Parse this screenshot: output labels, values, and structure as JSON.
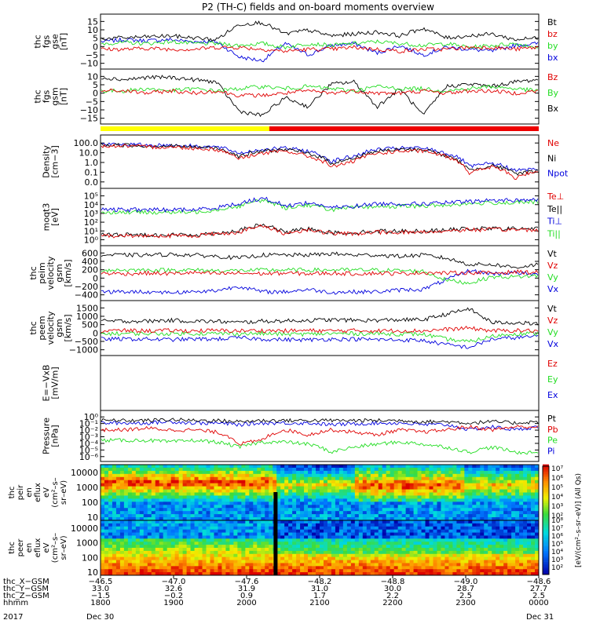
{
  "title": "P2 (TH-C) fields and on-board moments overview",
  "colors": {
    "black": "#000000",
    "red": "#e00000",
    "green": "#22dd22",
    "blue": "#0000dd",
    "yellow": "#ffff00",
    "barRed": "#ee0000"
  },
  "chart_data": [
    {
      "type": "line",
      "panel": "fgs_gse",
      "ylabel": [
        "thc",
        "fgs",
        "gse",
        "[nT]"
      ],
      "yticks": [
        "15",
        "10",
        "5",
        "0",
        "−5",
        "−10"
      ],
      "legend": [
        {
          "label": "Bt",
          "color": "#000000"
        },
        {
          "label": "bz",
          "color": "#e00000"
        },
        {
          "label": "by",
          "color": "#22dd22"
        },
        {
          "label": "bx",
          "color": "#0000dd"
        }
      ],
      "series": [
        {
          "name": "Bt",
          "values": [
            3.5,
            4,
            4.5,
            5,
            4,
            3,
            11,
            12,
            6,
            8,
            5,
            6,
            7,
            5,
            9,
            4,
            5,
            6,
            3,
            4
          ]
        },
        {
          "name": "bz",
          "values": [
            -2,
            -2,
            -1.5,
            -2,
            -2,
            -1,
            -1,
            -2,
            -3,
            -2,
            -2,
            -1,
            -2,
            -3,
            -2,
            -2,
            -1,
            -1,
            -2,
            -1
          ]
        },
        {
          "name": "by",
          "values": [
            1,
            1.5,
            1,
            2,
            1,
            1,
            0,
            1,
            -1,
            1,
            0,
            1,
            2,
            1,
            0,
            1,
            -1,
            0,
            1,
            -1
          ]
        },
        {
          "name": "bx",
          "values": [
            2,
            3,
            2.5,
            3,
            2,
            2,
            -6,
            -8,
            1,
            -5,
            0,
            1,
            -4,
            0,
            -5,
            -1,
            -2,
            -3,
            0,
            1
          ]
        }
      ]
    },
    {
      "type": "line",
      "panel": "fgs_gsm",
      "ylabel": [
        "thc",
        "fgs",
        "gsm",
        "[nT]"
      ],
      "yticks": [
        "10",
        "5",
        "0",
        "−5",
        "−10",
        "−15"
      ],
      "legend": [
        {
          "label": "Bz",
          "color": "#e00000"
        },
        {
          "label": "By",
          "color": "#22dd22"
        },
        {
          "label": "Bx",
          "color": "#000000"
        }
      ],
      "series": [
        {
          "name": "Bz",
          "values": [
            -1,
            -1,
            -2,
            -1,
            -2,
            -1,
            -3,
            -3,
            -2,
            -1,
            -2,
            -1,
            -2,
            -2,
            -1,
            -2,
            -1,
            -1,
            -2,
            -1
          ]
        },
        {
          "name": "By",
          "values": [
            -1,
            -1,
            0,
            -1,
            0,
            -1,
            0,
            1,
            0,
            1,
            0,
            -1,
            1,
            0,
            0,
            -1,
            0,
            1,
            0,
            -1
          ]
        },
        {
          "name": "Bx",
          "values": [
            5,
            4,
            5,
            5,
            4,
            3,
            -10,
            -12,
            -4,
            -8,
            2,
            3,
            -8,
            0,
            -12,
            1,
            2,
            1,
            3,
            4
          ]
        }
      ]
    },
    {
      "type": "line",
      "panel": "density",
      "ylabel": [
        "Density",
        "[cm−3]"
      ],
      "yscale": "log",
      "yticks": [
        "100.0",
        "10.0",
        "1.0",
        "0.1",
        "0.0"
      ],
      "legend": [
        {
          "label": "Ne",
          "color": "#e00000"
        },
        {
          "label": "Ni",
          "color": "#000000"
        },
        {
          "label": "Npot",
          "color": "#0000dd"
        }
      ],
      "series": [
        {
          "name": "Ne",
          "values": [
            8,
            8,
            7,
            7,
            6,
            5,
            1.5,
            3,
            4,
            2,
            0.5,
            1,
            3,
            4,
            4,
            2,
            0.2,
            0.5,
            0.1,
            0.3
          ]
        },
        {
          "name": "Ni",
          "values": [
            9,
            9,
            8,
            8,
            7,
            6,
            2,
            4,
            5,
            3,
            0.8,
            1.5,
            4,
            5,
            5,
            2,
            0.3,
            0.6,
            0.2,
            0.3
          ]
        },
        {
          "name": "Npot",
          "values": [
            10,
            10,
            9,
            9,
            8,
            7,
            3,
            5,
            6,
            4,
            1,
            2,
            5,
            6,
            6,
            3,
            0.5,
            0.8,
            0.3,
            0.4
          ]
        }
      ]
    },
    {
      "type": "line",
      "panel": "temperature",
      "ylabel": [
        "moqt3",
        "[eV]"
      ],
      "yscale": "log",
      "yticks": [
        "10⁵",
        "10⁴",
        "10³",
        "10²",
        "10¹",
        "10⁰"
      ],
      "legend": [
        {
          "label": "Te⊥",
          "color": "#e00000"
        },
        {
          "label": "Te||",
          "color": "#000000"
        },
        {
          "label": "Ti⊥",
          "color": "#0000dd"
        },
        {
          "label": "Ti||",
          "color": "#22dd22"
        }
      ],
      "series": [
        {
          "name": "Te⊥",
          "values": [
            20,
            20,
            20,
            20,
            20,
            25,
            30,
            60,
            25,
            40,
            25,
            25,
            30,
            30,
            30,
            35,
            40,
            40,
            40,
            40
          ]
        },
        {
          "name": "Te||",
          "values": [
            22,
            22,
            22,
            22,
            22,
            27,
            35,
            70,
            28,
            45,
            28,
            28,
            34,
            34,
            34,
            38,
            45,
            45,
            45,
            45
          ]
        },
        {
          "name": "Ti⊥",
          "values": [
            400,
            400,
            400,
            400,
            400,
            500,
            800,
            1500,
            600,
            900,
            500,
            600,
            800,
            800,
            800,
            900,
            1000,
            1200,
            1200,
            1300
          ]
        },
        {
          "name": "Ti||",
          "values": [
            300,
            300,
            300,
            300,
            300,
            400,
            600,
            1200,
            500,
            700,
            400,
            500,
            600,
            600,
            600,
            700,
            800,
            900,
            900,
            1000
          ]
        }
      ]
    },
    {
      "type": "line",
      "panel": "peim_velocity",
      "ylabel": [
        "thc",
        "peim",
        "velocity",
        "gsm",
        "[km/s]"
      ],
      "yticks": [
        "600",
        "400",
        "200",
        "0",
        "−200",
        "−400"
      ],
      "legend": [
        {
          "label": "Vt",
          "color": "#000000"
        },
        {
          "label": "Vz",
          "color": "#e00000"
        },
        {
          "label": "Vy",
          "color": "#22dd22"
        },
        {
          "label": "Vx",
          "color": "#0000dd"
        }
      ],
      "series": [
        {
          "name": "Vt",
          "values": [
            300,
            300,
            300,
            310,
            300,
            280,
            250,
            300,
            300,
            300,
            320,
            300,
            300,
            280,
            300,
            250,
            150,
            150,
            100,
            150
          ]
        },
        {
          "name": "Vz",
          "values": [
            10,
            0,
            10,
            0,
            20,
            0,
            10,
            0,
            10,
            0,
            10,
            0,
            10,
            0,
            20,
            10,
            20,
            10,
            30,
            20
          ]
        },
        {
          "name": "Vy",
          "values": [
            60,
            60,
            60,
            60,
            60,
            50,
            50,
            60,
            60,
            60,
            60,
            60,
            60,
            50,
            40,
            -100,
            -150,
            -50,
            -50,
            -30
          ]
        },
        {
          "name": "Vx",
          "values": [
            -290,
            -290,
            -290,
            -300,
            -290,
            -270,
            -200,
            -290,
            -290,
            -250,
            -300,
            -290,
            -290,
            -260,
            -250,
            -100,
            50,
            0,
            20,
            -20
          ]
        }
      ]
    },
    {
      "type": "line",
      "panel": "peem_velocity",
      "ylabel": [
        "thc",
        "peem",
        "velocity",
        "gsm",
        "[km/s]"
      ],
      "yticks": [
        "1500",
        "1000",
        "500",
        "0",
        "−500",
        "−1000"
      ],
      "legend": [
        {
          "label": "Vt",
          "color": "#000000"
        },
        {
          "label": "Vz",
          "color": "#e00000"
        },
        {
          "label": "Vy",
          "color": "#22dd22"
        },
        {
          "label": "Vx",
          "color": "#0000dd"
        }
      ],
      "series": [
        {
          "name": "Vt",
          "values": [
            350,
            350,
            350,
            380,
            350,
            340,
            300,
            350,
            360,
            380,
            400,
            380,
            380,
            400,
            400,
            600,
            800,
            300,
            300,
            250
          ]
        },
        {
          "name": "Vz",
          "values": [
            0,
            10,
            0,
            10,
            0,
            10,
            0,
            10,
            0,
            10,
            0,
            10,
            0,
            10,
            0,
            50,
            100,
            0,
            10,
            0
          ]
        },
        {
          "name": "Vy",
          "values": [
            -100,
            -100,
            -100,
            -100,
            -100,
            -100,
            -100,
            -100,
            -120,
            -120,
            -100,
            -100,
            -100,
            -120,
            -120,
            -300,
            -400,
            -200,
            -100,
            -100
          ]
        },
        {
          "name": "Vx",
          "values": [
            -300,
            -300,
            -300,
            -320,
            -300,
            -300,
            -250,
            -300,
            -320,
            -330,
            -300,
            -300,
            -320,
            -330,
            -350,
            -500,
            -600,
            -300,
            -250,
            -200
          ]
        }
      ]
    },
    {
      "type": "line",
      "panel": "efield",
      "ylabel": [
        "E=−VxB",
        "[mV/m]"
      ],
      "yticks": [],
      "legend": [
        {
          "label": "Ez",
          "color": "#e00000"
        },
        {
          "label": "Ey",
          "color": "#22dd22"
        },
        {
          "label": "Ex",
          "color": "#0000dd"
        }
      ],
      "series": []
    },
    {
      "type": "line",
      "panel": "pressure",
      "ylabel": [
        "Pressure",
        "[nPa]"
      ],
      "yscale": "log",
      "yticks": [
        "10⁰",
        "10⁻¹",
        "10⁻²",
        "10⁻³",
        "10⁻⁴",
        "10⁻⁵",
        "10⁻⁶"
      ],
      "legend": [
        {
          "label": "Pt",
          "color": "#000000"
        },
        {
          "label": "Pb",
          "color": "#e00000"
        },
        {
          "label": "Pe",
          "color": "#22dd22"
        },
        {
          "label": "Pi",
          "color": "#0000dd"
        }
      ],
      "series": [
        {
          "name": "Pt",
          "values": [
            0.07,
            0.07,
            0.07,
            0.08,
            0.07,
            0.07,
            0.06,
            0.07,
            0.07,
            0.07,
            0.07,
            0.07,
            0.07,
            0.07,
            0.06,
            0.06,
            0.05,
            0.06,
            0.05,
            0.06
          ]
        },
        {
          "name": "Pb",
          "values": [
            0.02,
            0.02,
            0.025,
            0.02,
            0.02,
            0.015,
            0.003,
            0.005,
            0.02,
            0.01,
            0.02,
            0.015,
            0.01,
            0.02,
            0.015,
            0.02,
            0.03,
            0.02,
            0.03,
            0.03
          ]
        },
        {
          "name": "Pe",
          "values": [
            0.005,
            0.005,
            0.005,
            0.004,
            0.005,
            0.004,
            0.002,
            0.004,
            0.004,
            0.003,
            0.001,
            0.002,
            0.003,
            0.004,
            0.003,
            0.002,
            0.001,
            0.002,
            0.001,
            0.001
          ]
        },
        {
          "name": "Pi",
          "values": [
            0.05,
            0.05,
            0.05,
            0.06,
            0.05,
            0.05,
            0.04,
            0.05,
            0.05,
            0.05,
            0.04,
            0.045,
            0.05,
            0.05,
            0.04,
            0.04,
            0.02,
            0.03,
            0.02,
            0.03
          ]
        }
      ]
    },
    {
      "type": "heatmap",
      "panel": "peir_spectrogram",
      "ylabel": [
        "thc",
        "peir",
        "en",
        "eflux",
        "eV",
        "(cm²–s–",
        "sr–eV)"
      ],
      "yscale": "log",
      "yticks": [
        "10000",
        "1000",
        "100",
        "10"
      ]
    },
    {
      "type": "heatmap",
      "panel": "peer_spectrogram",
      "ylabel": [
        "thc",
        "peer",
        "en",
        "eflux",
        "eV",
        "(cm²–s–",
        "sr–eV)"
      ],
      "yscale": "log",
      "yticks": [
        "10000",
        "1000",
        "100",
        "10"
      ]
    }
  ],
  "colorbar": {
    "label": "[eV/(cm²–s–sr–eV)] (All Qs)",
    "ticks_upper": [
      "10⁷",
      "10⁶",
      "10⁵",
      "10⁴",
      "10³",
      "10²"
    ],
    "ticks_lower": [
      "10⁸",
      "10⁷",
      "10⁶",
      "10⁵",
      "10⁴",
      "10³",
      "10²"
    ]
  },
  "footer": {
    "rows": [
      {
        "label": "thc_X−GSM",
        "values": [
          "−46.5",
          "−47.0",
          "−47.6",
          "−48.2",
          "−48.8",
          "−49.0",
          "−48.6"
        ]
      },
      {
        "label": "thc_Y−GSM",
        "values": [
          "33.0",
          "32.6",
          "31.9",
          "31.0",
          "30.0",
          "28.7",
          "27.7"
        ]
      },
      {
        "label": "thc_Z−GSM",
        "values": [
          "−1.5",
          "−0.2",
          "0.9",
          "1.7",
          "2.2",
          "2.5",
          "2.5"
        ]
      },
      {
        "label": "hhmm",
        "values": [
          "1800",
          "1900",
          "2000",
          "2100",
          "2200",
          "2300",
          "0000"
        ]
      }
    ],
    "year": "2017",
    "date_start": "Dec 30",
    "date_end": "Dec 31"
  }
}
